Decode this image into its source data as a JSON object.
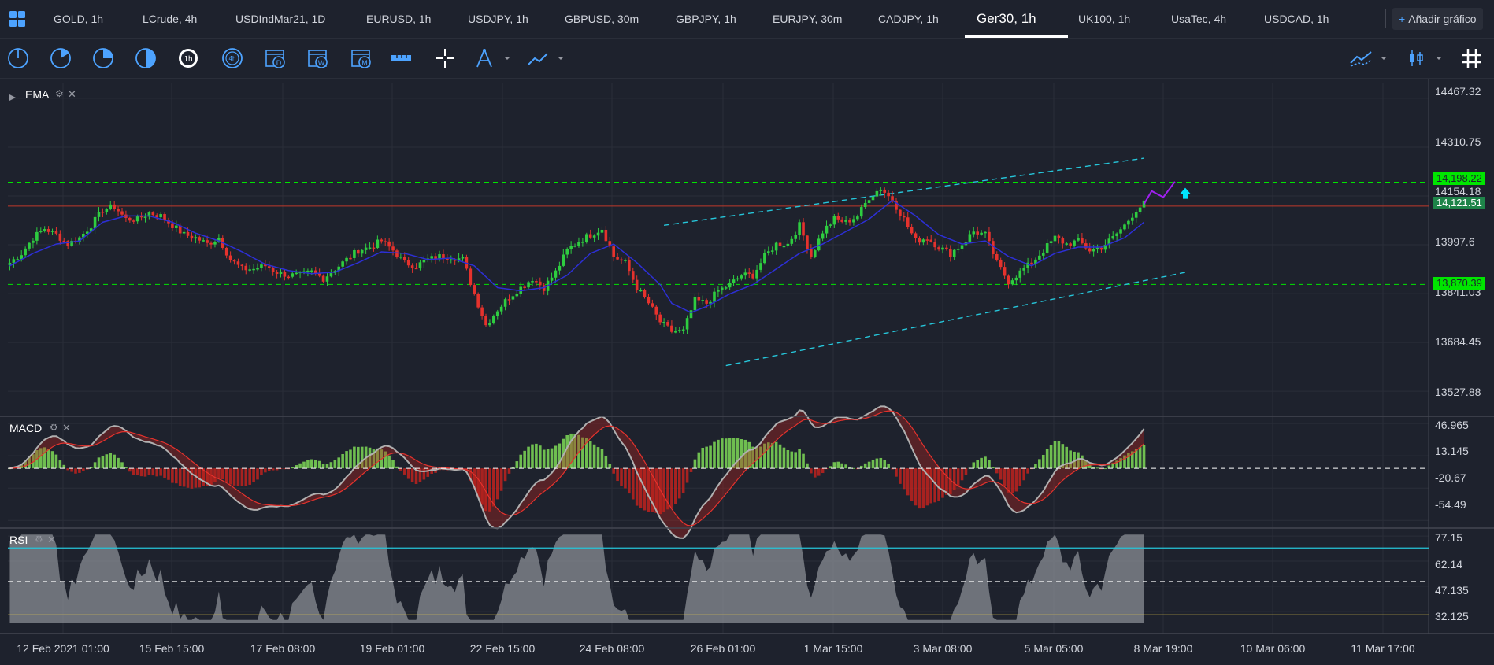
{
  "tabs": [
    {
      "label": "GOLD, 1h",
      "active": false
    },
    {
      "label": "LCrude, 4h",
      "active": false
    },
    {
      "label": "USDIndMar21, 1D",
      "active": false
    },
    {
      "label": "EURUSD, 1h",
      "active": false
    },
    {
      "label": "USDJPY, 1h",
      "active": false
    },
    {
      "label": "GBPUSD, 30m",
      "active": false
    },
    {
      "label": "GBPJPY, 1h",
      "active": false
    },
    {
      "label": "EURJPY, 30m",
      "active": false
    },
    {
      "label": "CADJPY, 1h",
      "active": false
    },
    {
      "label": "Ger30, 1h",
      "active": true
    },
    {
      "label": "UK100, 1h",
      "active": false
    },
    {
      "label": "UsaTec, 4h",
      "active": false
    },
    {
      "label": "USDCAD, 1h",
      "active": false
    }
  ],
  "add_chart_label": "Añadir gráfico",
  "toolbar": {
    "left_tools": [
      "clock-15m-icon",
      "clock-30m-icon",
      "clock-45m-icon",
      "clock-half-icon",
      "timeframe-1h-icon",
      "timeframe-4h-icon",
      "calendar-day-icon",
      "calendar-week-icon",
      "calendar-month-icon",
      "ruler-icon",
      "crosshair-icon",
      "drawing-compass-icon",
      "trendline-icon"
    ],
    "right_tools": [
      "indicator-icon",
      "chart-type-icon",
      "grid-icon"
    ]
  },
  "panes": {
    "price": {
      "title": "EMA"
    },
    "macd": {
      "title": "MACD"
    },
    "rsi": {
      "title": "RSI"
    }
  },
  "colors": {
    "background": "#1e222d",
    "grid": "#2a2e39",
    "bull": "#2ecc40",
    "bear": "#e5322d",
    "ema": "#2d2fd6",
    "macd_line": "#b0b0b0",
    "signal_line": "#e5322d",
    "channel": "#26c6da",
    "level_green": "#00e500",
    "level_red": "#c0392b",
    "forecast": "#a020f0",
    "rsi_fill": "#8a8d94",
    "rsi_upper": "#26c6da",
    "rsi_lower": "#e6c84b"
  },
  "chart_data": [
    {
      "type": "candlestick",
      "title": "Ger30, 1h",
      "overlay": "EMA",
      "ylim": [
        13450,
        14510
      ],
      "y_ticks": [
        14467.32,
        14310.75,
        14154.18,
        13997.6,
        13841.03,
        13684.45,
        13527.88
      ],
      "x_ticks": [
        "12 Feb 2021 01:00",
        "15 Feb 15:00",
        "17 Feb 08:00",
        "19 Feb 01:00",
        "22 Feb 15:00",
        "24 Feb 08:00",
        "26 Feb 01:00",
        "1 Mar 15:00",
        "3 Mar 08:00",
        "5 Mar 05:00",
        "8 Mar 19:00",
        "10 Mar 06:00",
        "11 Mar 17:00"
      ],
      "price_path": [
        [
          0,
          13940
        ],
        [
          3,
          13970
        ],
        [
          6,
          14020
        ],
        [
          9,
          14050
        ],
        [
          12,
          14030
        ],
        [
          15,
          14000
        ],
        [
          18,
          14020
        ],
        [
          21,
          14060
        ],
        [
          24,
          14110
        ],
        [
          27,
          14120
        ],
        [
          30,
          14080
        ],
        [
          33,
          14080
        ],
        [
          36,
          14100
        ],
        [
          39,
          14090
        ],
        [
          42,
          14060
        ],
        [
          45,
          14030
        ],
        [
          48,
          14020
        ],
        [
          51,
          14000
        ],
        [
          54,
          14020
        ],
        [
          57,
          13950
        ],
        [
          60,
          13920
        ],
        [
          63,
          13920
        ],
        [
          66,
          13930
        ],
        [
          69,
          13910
        ],
        [
          72,
          13900
        ],
        [
          75,
          13900
        ],
        [
          78,
          13910
        ],
        [
          81,
          13890
        ],
        [
          84,
          13920
        ],
        [
          87,
          13950
        ],
        [
          90,
          13980
        ],
        [
          93,
          13990
        ],
        [
          96,
          14010
        ],
        [
          99,
          13980
        ],
        [
          102,
          13940
        ],
        [
          105,
          13930
        ],
        [
          108,
          13950
        ],
        [
          111,
          13960
        ],
        [
          114,
          13960
        ],
        [
          117,
          13950
        ],
        [
          120,
          13840
        ],
        [
          123,
          13740
        ],
        [
          126,
          13790
        ],
        [
          129,
          13830
        ],
        [
          132,
          13860
        ],
        [
          135,
          13890
        ],
        [
          138,
          13860
        ],
        [
          141,
          13910
        ],
        [
          144,
          13980
        ],
        [
          147,
          14010
        ],
        [
          150,
          14030
        ],
        [
          153,
          14050
        ],
        [
          156,
          13960
        ],
        [
          159,
          13940
        ],
        [
          162,
          13860
        ],
        [
          165,
          13810
        ],
        [
          168,
          13750
        ],
        [
          171,
          13720
        ],
        [
          174,
          13720
        ],
        [
          177,
          13820
        ],
        [
          180,
          13810
        ],
        [
          183,
          13850
        ],
        [
          186,
          13870
        ],
        [
          189,
          13900
        ],
        [
          192,
          13900
        ],
        [
          195,
          13960
        ],
        [
          198,
          14000
        ],
        [
          201,
          14000
        ],
        [
          204,
          14060
        ],
        [
          207,
          13960
        ],
        [
          210,
          14040
        ],
        [
          213,
          14080
        ],
        [
          216,
          14070
        ],
        [
          219,
          14090
        ],
        [
          222,
          14150
        ],
        [
          225,
          14180
        ],
        [
          228,
          14140
        ],
        [
          231,
          14080
        ],
        [
          234,
          14010
        ],
        [
          237,
          14020
        ],
        [
          240,
          13990
        ],
        [
          243,
          13970
        ],
        [
          246,
          14000
        ],
        [
          249,
          14040
        ],
        [
          252,
          14030
        ],
        [
          255,
          13940
        ],
        [
          258,
          13880
        ],
        [
          261,
          13910
        ],
        [
          264,
          13940
        ],
        [
          267,
          13980
        ],
        [
          270,
          14020
        ],
        [
          273,
          14000
        ],
        [
          276,
          14010
        ],
        [
          279,
          13980
        ],
        [
          282,
          13990
        ],
        [
          285,
          14020
        ],
        [
          288,
          14060
        ],
        [
          291,
          14110
        ],
        [
          293,
          14130
        ]
      ],
      "ema_path": [
        [
          0,
          13930
        ],
        [
          6,
          13970
        ],
        [
          12,
          14000
        ],
        [
          18,
          14010
        ],
        [
          24,
          14070
        ],
        [
          30,
          14090
        ],
        [
          36,
          14090
        ],
        [
          42,
          14070
        ],
        [
          48,
          14035
        ],
        [
          54,
          14010
        ],
        [
          60,
          13975
        ],
        [
          66,
          13935
        ],
        [
          72,
          13915
        ],
        [
          78,
          13905
        ],
        [
          84,
          13910
        ],
        [
          90,
          13940
        ],
        [
          96,
          13975
        ],
        [
          102,
          13970
        ],
        [
          108,
          13950
        ],
        [
          114,
          13955
        ],
        [
          120,
          13930
        ],
        [
          126,
          13860
        ],
        [
          132,
          13850
        ],
        [
          138,
          13860
        ],
        [
          144,
          13900
        ],
        [
          150,
          13970
        ],
        [
          156,
          14000
        ],
        [
          162,
          13940
        ],
        [
          168,
          13870
        ],
        [
          171,
          13810
        ],
        [
          176,
          13780
        ],
        [
          180,
          13800
        ],
        [
          186,
          13840
        ],
        [
          192,
          13870
        ],
        [
          198,
          13920
        ],
        [
          204,
          13970
        ],
        [
          210,
          14000
        ],
        [
          216,
          14040
        ],
        [
          222,
          14080
        ],
        [
          228,
          14140
        ],
        [
          234,
          14090
        ],
        [
          240,
          14030
        ],
        [
          246,
          14000
        ],
        [
          252,
          14010
        ],
        [
          258,
          13960
        ],
        [
          264,
          13930
        ],
        [
          270,
          13970
        ],
        [
          276,
          13990
        ],
        [
          282,
          13990
        ],
        [
          288,
          14020
        ],
        [
          293,
          14070
        ]
      ],
      "levels": [
        {
          "value": 14198.22,
          "style": "dashed",
          "color": "green"
        },
        {
          "value": 14121.51,
          "style": "solid",
          "color": "red"
        },
        {
          "value": 13870.39,
          "style": "dashed",
          "color": "green"
        }
      ],
      "tag_labels": [
        "14,198.22",
        "14,121.51",
        "13,870.39"
      ],
      "channel": {
        "upper": [
          [
            "169",
            14060
          ],
          [
            "293",
            14275
          ]
        ],
        "lower": [
          [
            "185",
            13610
          ],
          [
            "304",
            13910
          ]
        ]
      },
      "forecast_path": [
        [
          293,
          14128
        ],
        [
          295,
          14170
        ],
        [
          298,
          14150
        ],
        [
          301,
          14200
        ]
      ]
    },
    {
      "type": "area",
      "title": "MACD",
      "ylim": [
        -60,
        52
      ],
      "y_ticks": [
        46.965,
        13.145,
        -20.67,
        -54.49
      ],
      "zero_line": 0
    },
    {
      "type": "area",
      "title": "RSI",
      "ylim": [
        25,
        80
      ],
      "y_ticks": [
        77.15,
        62.14,
        47.135,
        32.125
      ],
      "levels": [
        70,
        50,
        30
      ]
    }
  ]
}
